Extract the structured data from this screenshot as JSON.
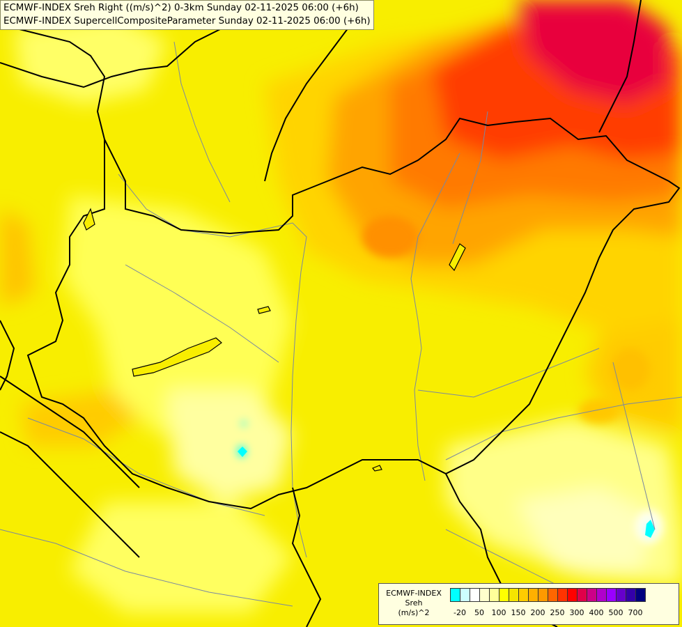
{
  "header": {
    "line1": "ECMWF-INDEX Sreh Right ((m/s)^2) 0-3km Sunday 02-11-2025 06:00 (+6h)",
    "line2": "ECMWF-INDEX SupercellCompositeParameter Sunday 02-11-2025 06:00 (+6h)"
  },
  "legend": {
    "title": [
      "ECMWF-INDEX",
      "Sreh",
      "(m/s)^2"
    ],
    "colors": [
      "#00ffff",
      "#ccffff",
      "#ffffff",
      "#ffffcc",
      "#ffff99",
      "#ffff00",
      "#f5e400",
      "#ffcc00",
      "#ffb000",
      "#ff9900",
      "#ff6600",
      "#ff3300",
      "#ff0000",
      "#e0004a",
      "#cc0088",
      "#b000cc",
      "#9900ff",
      "#6600cc",
      "#3300aa",
      "#000080"
    ],
    "ticks": [
      {
        "label": "-20",
        "index": 1
      },
      {
        "label": "50",
        "index": 3
      },
      {
        "label": "100",
        "index": 5
      },
      {
        "label": "150",
        "index": 7
      },
      {
        "label": "200",
        "index": 9
      },
      {
        "label": "250",
        "index": 11
      },
      {
        "label": "300",
        "index": 13
      },
      {
        "label": "400",
        "index": 15
      },
      {
        "label": "500",
        "index": 17
      },
      {
        "label": "700",
        "index": 19
      }
    ]
  }
}
